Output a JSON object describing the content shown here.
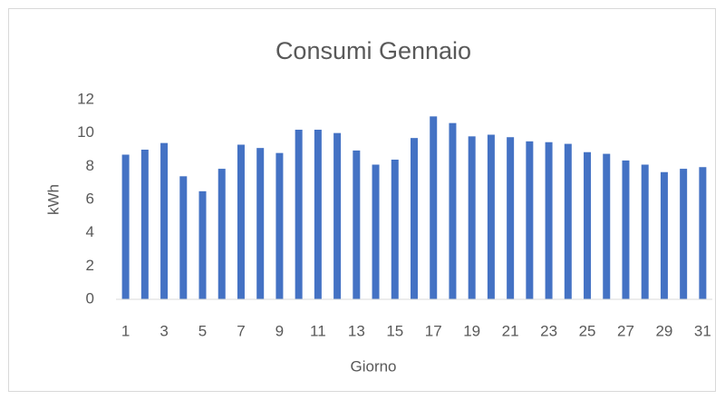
{
  "chart_data": {
    "type": "bar",
    "title": "Consumi Gennaio",
    "x_label": "Giorno",
    "y_label": "kWh",
    "categories": [
      "1",
      null,
      "3",
      null,
      "5",
      null,
      "7",
      null,
      "9",
      null,
      "11",
      null,
      "13",
      null,
      "15",
      null,
      "17",
      null,
      "19",
      null,
      "21",
      null,
      "23",
      null,
      "25",
      null,
      "27",
      null,
      "29",
      null,
      "31"
    ],
    "values": [
      8.7,
      9.0,
      9.4,
      7.4,
      6.5,
      7.85,
      9.3,
      9.1,
      8.8,
      10.2,
      10.2,
      10.0,
      8.95,
      8.1,
      8.4,
      9.7,
      11.0,
      10.6,
      9.8,
      9.9,
      9.75,
      9.5,
      9.45,
      9.35,
      8.85,
      8.75,
      8.35,
      8.1,
      7.65,
      7.85,
      7.95
    ],
    "color": "#4472c4",
    "ylim": [
      0,
      12
    ],
    "yticks": [
      0,
      2,
      4,
      6,
      8,
      10,
      12
    ],
    "grid": false
  }
}
